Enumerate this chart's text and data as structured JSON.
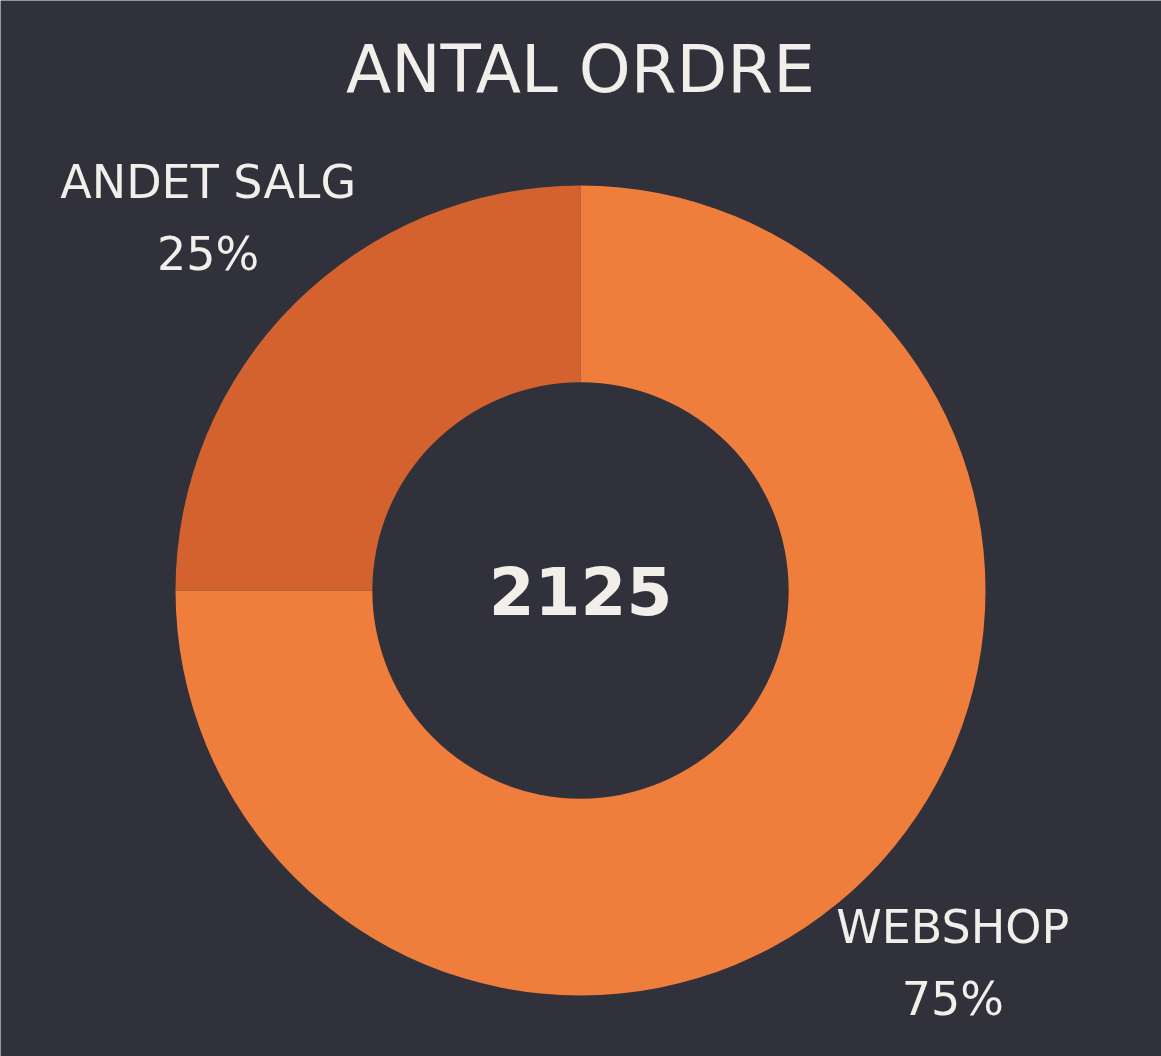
{
  "chart_data": {
    "type": "donut",
    "title": "ANTAL ORDRE",
    "categories": [
      "ANDET SALG",
      "WEBSHOP"
    ],
    "values": [
      25,
      75
    ],
    "colors": [
      "#d4622f",
      "#ef7d3c"
    ],
    "value_labels": [
      "25%",
      "75%"
    ],
    "annotations": [
      "2125"
    ]
  }
}
